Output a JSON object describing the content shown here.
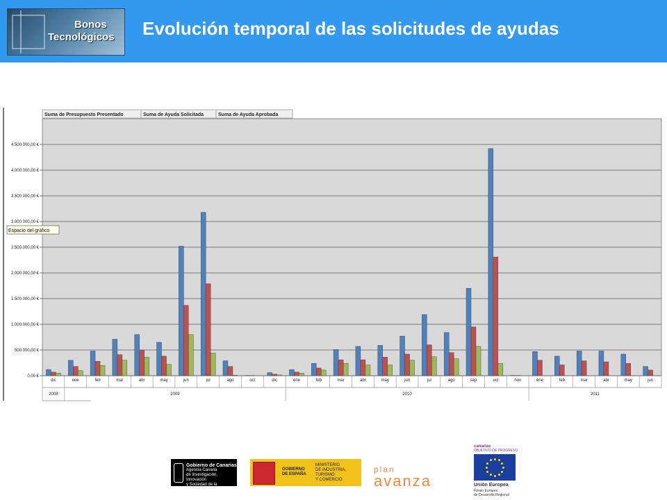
{
  "header": {
    "title": "Evolución temporal de las solicitudes de ayudas",
    "logo_line1": "Bonos",
    "logo_line2": "Tecnológicos"
  },
  "chart_data": {
    "type": "bar",
    "title": "",
    "tooltip": "Espacio del gráfico",
    "ylim": [
      0,
      5000000
    ],
    "yticks": [
      0,
      500000,
      1000000,
      1500000,
      2000000,
      2500000,
      3000000,
      3500000,
      4000000,
      4500000
    ],
    "ytick_labels": [
      "0,00 €",
      "500.000,00 €",
      "1.000.000,00 €",
      "1.500.000,00 €",
      "2.000.000,00 €",
      "2.500.000,00 €",
      "3.000.000,00 €",
      "3.500.000,00 €",
      "4.000.000,00 €",
      "4.500.000,00 €"
    ],
    "grid": true,
    "legend_position": "top-left",
    "categories": [
      "dic",
      "ene",
      "feb",
      "mar",
      "abr",
      "may",
      "jun",
      "jul",
      "ago",
      "oct",
      "dic",
      "ene",
      "feb",
      "mar",
      "abr",
      "may",
      "jun",
      "jul",
      "ago",
      "sep",
      "oct",
      "nov",
      "ene",
      "feb",
      "mar",
      "abr",
      "may",
      "jun"
    ],
    "years": [
      {
        "label": "2008",
        "start": 0,
        "count": 1
      },
      {
        "label": "2009",
        "start": 1,
        "count": 10
      },
      {
        "label": "2010",
        "start": 11,
        "count": 11
      },
      {
        "label": "2011",
        "start": 22,
        "count": 6
      }
    ],
    "series": [
      {
        "name": "Suma de Presupuesto Presentado",
        "color": "#4f81bd",
        "values": [
          120000,
          300000,
          480000,
          710000,
          800000,
          650000,
          2520000,
          3180000,
          290000,
          5000,
          60000,
          120000,
          240000,
          510000,
          570000,
          590000,
          770000,
          1190000,
          840000,
          1700000,
          4420000,
          5000,
          470000,
          380000,
          480000,
          480000,
          420000,
          180000
        ]
      },
      {
        "name": "Suma de Ayuda Solicitada",
        "color": "#c0504d",
        "values": [
          70000,
          180000,
          280000,
          410000,
          490000,
          380000,
          1370000,
          1790000,
          180000,
          3000,
          30000,
          70000,
          150000,
          310000,
          310000,
          360000,
          420000,
          600000,
          450000,
          950000,
          2310000,
          3000,
          300000,
          210000,
          290000,
          270000,
          240000,
          110000
        ]
      },
      {
        "name": "Suma de Ayuda Aprobada",
        "color": "#9bbb59",
        "values": [
          50000,
          100000,
          200000,
          300000,
          360000,
          220000,
          800000,
          440000,
          10000,
          0,
          15000,
          50000,
          110000,
          240000,
          210000,
          210000,
          300000,
          370000,
          330000,
          570000,
          240000,
          0,
          0,
          0,
          0,
          0,
          0,
          0
        ]
      }
    ]
  },
  "footer": {
    "gc_line1": "Gobierno de Canarias",
    "gc_line2": "Agencia Canaria",
    "gc_line3": "de Investigación, Innovación",
    "gc_line4": "y Sociedad de la Información",
    "ge_label1": "GOBIERNO",
    "ge_label2": "DE ESPAÑA",
    "ge_min1": "MINISTERIO",
    "ge_min2": "DE INDUSTRIA, TURISMO",
    "ge_min3": "Y COMERCIO",
    "plan1": "plan",
    "plan2": "avanza",
    "eu_top1": "canarias",
    "eu_top2": "OBJETIVO DE PROGRESO",
    "eu_name": "Unión Europea",
    "eu_sub1": "Fondo Europeo",
    "eu_sub2": "de Desarrollo Regional"
  }
}
